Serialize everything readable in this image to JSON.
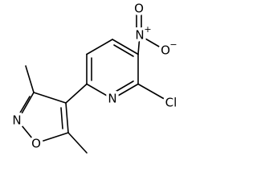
{
  "atoms": [
    "N",
    "Cl",
    "N",
    "O",
    "O",
    "N",
    "O"
  ],
  "charges": [
    "+",
    "−"
  ]
}
